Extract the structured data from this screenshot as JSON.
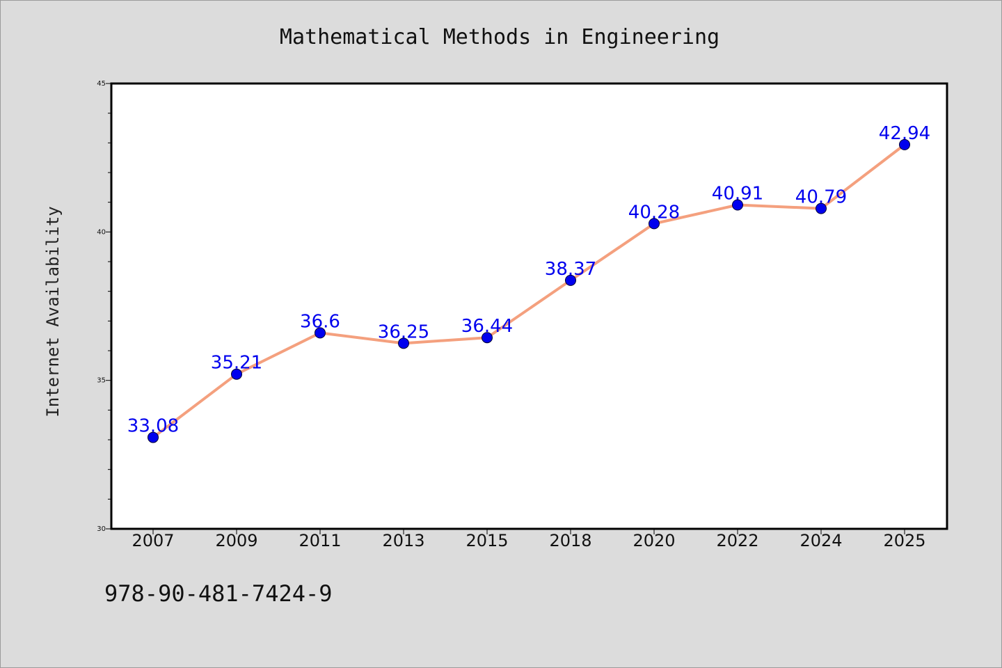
{
  "chart_data": {
    "type": "line",
    "title": "Mathematical Methods in Engineering",
    "xlabel": "",
    "ylabel": "Internet Availability",
    "categories": [
      "2007",
      "2009",
      "2011",
      "2013",
      "2015",
      "2018",
      "2020",
      "2022",
      "2024",
      "2025"
    ],
    "series": [
      {
        "values": [
          33.08,
          35.21,
          36.6,
          36.25,
          36.44,
          38.37,
          40.28,
          40.91,
          40.79,
          42.94
        ],
        "labels": [
          "33.08",
          "35.21",
          "36.6",
          "36.25",
          "36.44",
          "38.37",
          "40.28",
          "40.91",
          "40.79",
          "42.94"
        ],
        "line_color": "#f4a07e",
        "marker_color": "#0000ee"
      }
    ],
    "ylim": [
      30,
      45
    ],
    "y_ticks": [
      "30",
      "35",
      "40",
      "45"
    ],
    "grid": false
  },
  "footnote": "978-90-481-7424-9"
}
